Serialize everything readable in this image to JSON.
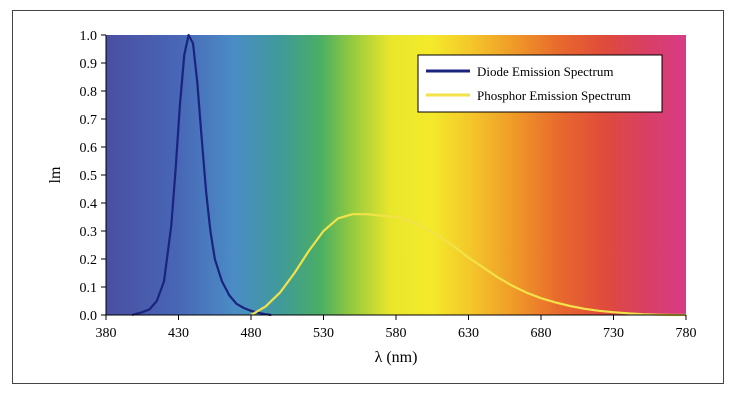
{
  "chart_data": {
    "type": "line",
    "xlabel": "λ (nm)",
    "ylabel": "lm",
    "xlim": [
      380,
      780
    ],
    "ylim": [
      0,
      1
    ],
    "x_ticks": [
      "380",
      "430",
      "480",
      "530",
      "580",
      "630",
      "680",
      "730",
      "780"
    ],
    "y_ticks": [
      "0.0",
      "0.1",
      "0.2",
      "0.3",
      "0.4",
      "0.5",
      "0.6",
      "0.7",
      "0.8",
      "0.9",
      "1.0"
    ],
    "grid": false,
    "background": "visible-spectrum rainbow gradient",
    "legend_position": "top-right",
    "series": [
      {
        "name": "Diode Emission Spectrum",
        "color": "#1a237e",
        "x": [
          398,
          405,
          410,
          415,
          420,
          425,
          428,
          431,
          434,
          437,
          440,
          443,
          446,
          449,
          452,
          455,
          460,
          465,
          470,
          475,
          480,
          485,
          490,
          494
        ],
        "y": [
          0.0,
          0.01,
          0.02,
          0.05,
          0.12,
          0.32,
          0.52,
          0.75,
          0.93,
          1.0,
          0.97,
          0.83,
          0.63,
          0.44,
          0.3,
          0.2,
          0.12,
          0.07,
          0.04,
          0.025,
          0.015,
          0.008,
          0.003,
          0.0
        ]
      },
      {
        "name": "Phosphor Emission Spectrum",
        "color": "#f2e24a",
        "x": [
          480,
          490,
          500,
          510,
          520,
          530,
          540,
          550,
          560,
          570,
          580,
          590,
          600,
          610,
          620,
          630,
          640,
          650,
          660,
          670,
          680,
          690,
          700,
          710,
          720,
          730,
          740,
          750,
          760,
          770,
          780
        ],
        "y": [
          0.0,
          0.03,
          0.08,
          0.15,
          0.23,
          0.3,
          0.345,
          0.36,
          0.36,
          0.355,
          0.35,
          0.335,
          0.31,
          0.28,
          0.245,
          0.205,
          0.17,
          0.135,
          0.105,
          0.08,
          0.06,
          0.045,
          0.032,
          0.022,
          0.015,
          0.01,
          0.006,
          0.003,
          0.001,
          0.0,
          0.0
        ]
      }
    ]
  }
}
